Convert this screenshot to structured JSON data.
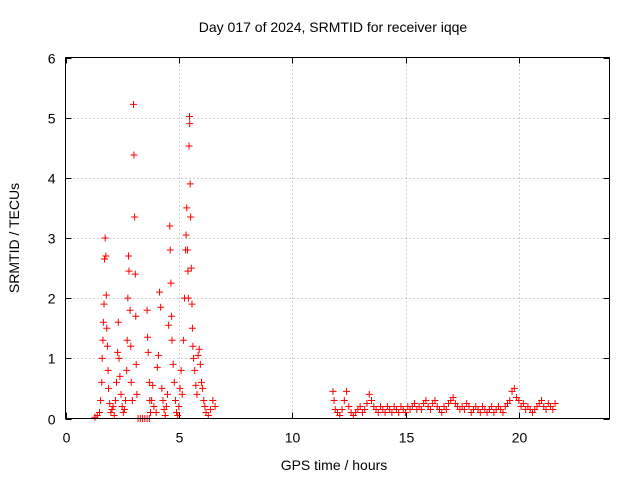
{
  "chart_data": {
    "type": "scatter",
    "title": "Day 017 of 2024, SRMTID for receiver iqqe",
    "xlabel": "GPS time / hours",
    "ylabel": "SRMTID / TECUs",
    "xlim": [
      0,
      24
    ],
    "ylim": [
      0,
      6
    ],
    "xticks": [
      0,
      5,
      10,
      15,
      20
    ],
    "xtick_labels": [
      "0",
      "5",
      "10",
      "15",
      "20"
    ],
    "yticks": [
      0,
      1,
      2,
      3,
      4,
      5,
      6
    ],
    "ytick_labels": [
      "0",
      "1",
      "2",
      "3",
      "4",
      "5",
      "6"
    ],
    "grid": true,
    "marker": "+",
    "color": "#ff0000",
    "series": [
      {
        "name": "SRMTID",
        "points": [
          [
            1.3,
            0.02
          ],
          [
            1.4,
            0.05
          ],
          [
            1.5,
            0.1
          ],
          [
            1.55,
            0.3
          ],
          [
            1.6,
            0.6
          ],
          [
            1.62,
            1.0
          ],
          [
            1.65,
            1.3
          ],
          [
            1.67,
            1.6
          ],
          [
            1.7,
            1.9
          ],
          [
            1.72,
            2.65
          ],
          [
            1.75,
            3.0
          ],
          [
            1.78,
            2.7
          ],
          [
            1.8,
            2.05
          ],
          [
            1.82,
            1.5
          ],
          [
            1.85,
            1.2
          ],
          [
            1.88,
            0.8
          ],
          [
            1.9,
            0.5
          ],
          [
            1.95,
            0.25
          ],
          [
            2.0,
            0.1
          ],
          [
            2.05,
            0.15
          ],
          [
            2.1,
            0.2
          ],
          [
            2.15,
            0.05
          ],
          [
            2.2,
            0.3
          ],
          [
            2.25,
            0.6
          ],
          [
            2.3,
            1.1
          ],
          [
            2.33,
            1.6
          ],
          [
            2.36,
            1.0
          ],
          [
            2.4,
            0.7
          ],
          [
            2.45,
            0.4
          ],
          [
            2.5,
            0.2
          ],
          [
            2.55,
            0.1
          ],
          [
            2.6,
            0.15
          ],
          [
            2.65,
            0.3
          ],
          [
            2.7,
            0.8
          ],
          [
            2.72,
            1.3
          ],
          [
            2.75,
            2.0
          ],
          [
            2.78,
            2.7
          ],
          [
            2.8,
            2.45
          ],
          [
            2.85,
            1.8
          ],
          [
            2.88,
            1.2
          ],
          [
            2.9,
            0.6
          ],
          [
            2.95,
            0.3
          ],
          [
            3.0,
            5.22
          ],
          [
            3.02,
            4.38
          ],
          [
            3.05,
            3.35
          ],
          [
            3.08,
            2.4
          ],
          [
            3.1,
            1.7
          ],
          [
            3.12,
            0.9
          ],
          [
            3.15,
            0.4
          ],
          [
            3.2,
            0.0
          ],
          [
            3.3,
            0.0
          ],
          [
            3.4,
            0.0
          ],
          [
            3.5,
            0.0
          ],
          [
            3.6,
            0.0
          ],
          [
            3.7,
            0.0
          ],
          [
            3.6,
            1.8
          ],
          [
            3.62,
            1.35
          ],
          [
            3.65,
            1.1
          ],
          [
            3.7,
            0.6
          ],
          [
            3.72,
            0.3
          ],
          [
            3.75,
            0.1
          ],
          [
            3.8,
            0.3
          ],
          [
            3.85,
            0.55
          ],
          [
            3.9,
            0.2
          ],
          [
            4.0,
            0.1
          ],
          [
            4.05,
            0.85
          ],
          [
            4.1,
            1.05
          ],
          [
            4.15,
            2.1
          ],
          [
            4.2,
            1.85
          ],
          [
            4.25,
            0.5
          ],
          [
            4.3,
            0.3
          ],
          [
            4.35,
            0.15
          ],
          [
            4.4,
            0.05
          ],
          [
            4.45,
            0.2
          ],
          [
            4.5,
            0.4
          ],
          [
            4.55,
            1.55
          ],
          [
            4.6,
            3.2
          ],
          [
            4.62,
            2.8
          ],
          [
            4.65,
            2.25
          ],
          [
            4.68,
            1.7
          ],
          [
            4.7,
            1.3
          ],
          [
            4.75,
            0.9
          ],
          [
            4.8,
            0.6
          ],
          [
            4.85,
            0.3
          ],
          [
            4.9,
            0.1
          ],
          [
            4.95,
            0.05
          ],
          [
            5.0,
            0.2
          ],
          [
            5.05,
            0.5
          ],
          [
            5.1,
            0.8
          ],
          [
            5.15,
            0.4
          ],
          [
            5.2,
            1.3
          ],
          [
            5.25,
            2.0
          ],
          [
            5.3,
            2.8
          ],
          [
            5.32,
            3.05
          ],
          [
            5.35,
            3.5
          ],
          [
            5.38,
            2.8
          ],
          [
            5.4,
            2.45
          ],
          [
            5.42,
            2.0
          ],
          [
            5.45,
            4.53
          ],
          [
            5.47,
            5.02
          ],
          [
            5.48,
            4.9
          ],
          [
            5.5,
            3.9
          ],
          [
            5.52,
            3.35
          ],
          [
            5.55,
            2.5
          ],
          [
            5.58,
            1.9
          ],
          [
            5.6,
            1.5
          ],
          [
            5.62,
            1.2
          ],
          [
            5.65,
            1.0
          ],
          [
            5.7,
            0.8
          ],
          [
            5.75,
            0.55
          ],
          [
            5.8,
            0.4
          ],
          [
            5.85,
            1.05
          ],
          [
            5.9,
            1.15
          ],
          [
            5.95,
            0.9
          ],
          [
            6.0,
            0.6
          ],
          [
            6.05,
            0.5
          ],
          [
            6.1,
            0.3
          ],
          [
            6.15,
            0.2
          ],
          [
            6.2,
            0.1
          ],
          [
            6.3,
            0.05
          ],
          [
            6.4,
            0.15
          ],
          [
            6.5,
            0.3
          ],
          [
            6.6,
            0.2
          ],
          [
            11.8,
            0.45
          ],
          [
            11.85,
            0.3
          ],
          [
            11.9,
            0.15
          ],
          [
            12.0,
            0.1
          ],
          [
            12.1,
            0.05
          ],
          [
            12.2,
            0.15
          ],
          [
            12.3,
            0.3
          ],
          [
            12.4,
            0.45
          ],
          [
            12.5,
            0.2
          ],
          [
            12.6,
            0.1
          ],
          [
            12.7,
            0.05
          ],
          [
            12.8,
            0.1
          ],
          [
            12.9,
            0.15
          ],
          [
            13.0,
            0.2
          ],
          [
            13.1,
            0.1
          ],
          [
            13.2,
            0.15
          ],
          [
            13.3,
            0.25
          ],
          [
            13.4,
            0.4
          ],
          [
            13.5,
            0.3
          ],
          [
            13.6,
            0.2
          ],
          [
            13.7,
            0.15
          ],
          [
            13.8,
            0.1
          ],
          [
            13.9,
            0.2
          ],
          [
            14.0,
            0.15
          ],
          [
            14.1,
            0.1
          ],
          [
            14.2,
            0.2
          ],
          [
            14.3,
            0.15
          ],
          [
            14.4,
            0.1
          ],
          [
            14.5,
            0.2
          ],
          [
            14.6,
            0.15
          ],
          [
            14.7,
            0.1
          ],
          [
            14.8,
            0.2
          ],
          [
            14.9,
            0.15
          ],
          [
            15.0,
            0.1
          ],
          [
            15.1,
            0.2
          ],
          [
            15.2,
            0.15
          ],
          [
            15.3,
            0.2
          ],
          [
            15.4,
            0.25
          ],
          [
            15.5,
            0.15
          ],
          [
            15.6,
            0.2
          ],
          [
            15.7,
            0.15
          ],
          [
            15.8,
            0.25
          ],
          [
            15.9,
            0.3
          ],
          [
            16.0,
            0.2
          ],
          [
            16.1,
            0.15
          ],
          [
            16.2,
            0.25
          ],
          [
            16.3,
            0.3
          ],
          [
            16.4,
            0.2
          ],
          [
            16.5,
            0.15
          ],
          [
            16.6,
            0.1
          ],
          [
            16.7,
            0.2
          ],
          [
            16.8,
            0.15
          ],
          [
            16.9,
            0.25
          ],
          [
            17.0,
            0.3
          ],
          [
            17.1,
            0.35
          ],
          [
            17.2,
            0.25
          ],
          [
            17.3,
            0.2
          ],
          [
            17.4,
            0.15
          ],
          [
            17.5,
            0.2
          ],
          [
            17.6,
            0.15
          ],
          [
            17.7,
            0.25
          ],
          [
            17.8,
            0.2
          ],
          [
            17.9,
            0.1
          ],
          [
            18.0,
            0.15
          ],
          [
            18.1,
            0.2
          ],
          [
            18.2,
            0.15
          ],
          [
            18.3,
            0.1
          ],
          [
            18.4,
            0.2
          ],
          [
            18.5,
            0.15
          ],
          [
            18.6,
            0.1
          ],
          [
            18.7,
            0.15
          ],
          [
            18.8,
            0.2
          ],
          [
            18.9,
            0.1
          ],
          [
            19.0,
            0.15
          ],
          [
            19.1,
            0.2
          ],
          [
            19.2,
            0.15
          ],
          [
            19.3,
            0.1
          ],
          [
            19.4,
            0.2
          ],
          [
            19.5,
            0.25
          ],
          [
            19.6,
            0.3
          ],
          [
            19.7,
            0.45
          ],
          [
            19.8,
            0.5
          ],
          [
            19.9,
            0.35
          ],
          [
            20.0,
            0.3
          ],
          [
            20.1,
            0.2
          ],
          [
            20.2,
            0.25
          ],
          [
            20.3,
            0.15
          ],
          [
            20.4,
            0.2
          ],
          [
            20.5,
            0.15
          ],
          [
            20.6,
            0.1
          ],
          [
            20.7,
            0.15
          ],
          [
            20.8,
            0.2
          ],
          [
            20.9,
            0.25
          ],
          [
            21.0,
            0.3
          ],
          [
            21.1,
            0.2
          ],
          [
            21.2,
            0.15
          ],
          [
            21.3,
            0.25
          ],
          [
            21.4,
            0.2
          ],
          [
            21.5,
            0.15
          ],
          [
            21.6,
            0.25
          ]
        ]
      }
    ]
  }
}
